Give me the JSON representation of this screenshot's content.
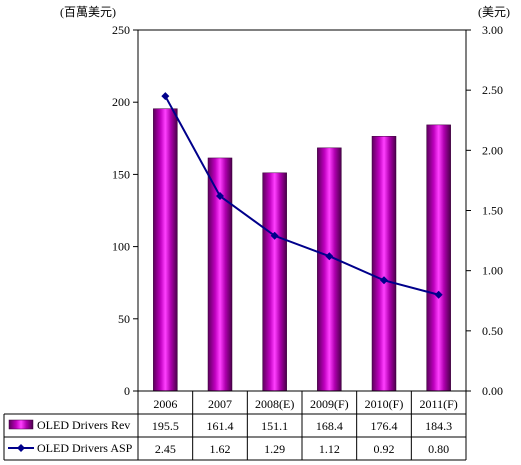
{
  "chart_data": {
    "type": "bar+line",
    "left_unit": "(百萬美元)",
    "right_unit": "(美元)",
    "categories": [
      "2006",
      "2007",
      "2008(E)",
      "2009(F)",
      "2010(F)",
      "2011(F)"
    ],
    "left_axis": {
      "min": 0,
      "max": 250,
      "step": 50,
      "ticks": [
        "0",
        "50",
        "100",
        "150",
        "200",
        "250"
      ]
    },
    "right_axis": {
      "min": 0,
      "max": 3.0,
      "step": 0.5,
      "ticks": [
        "0.00",
        "0.50",
        "1.00",
        "1.50",
        "2.00",
        "2.50",
        "3.00"
      ]
    },
    "series": [
      {
        "name": "OLED Drivers Rev",
        "kind": "bar",
        "axis": "left",
        "values": [
          195.5,
          161.4,
          151.1,
          168.4,
          176.4,
          184.3
        ],
        "labels": [
          "195.5",
          "161.4",
          "151.1",
          "168.4",
          "176.4",
          "184.3"
        ],
        "color": "#7a0a7a",
        "highlight": "#ff33ff"
      },
      {
        "name": "OLED Drivers ASP",
        "kind": "line",
        "axis": "right",
        "values": [
          2.45,
          1.62,
          1.29,
          1.12,
          0.92,
          0.8
        ],
        "labels": [
          "2.45",
          "1.62",
          "1.29",
          "1.12",
          "0.92",
          "0.80"
        ],
        "color": "#00008b"
      }
    ],
    "data_table": true,
    "grid": false
  }
}
